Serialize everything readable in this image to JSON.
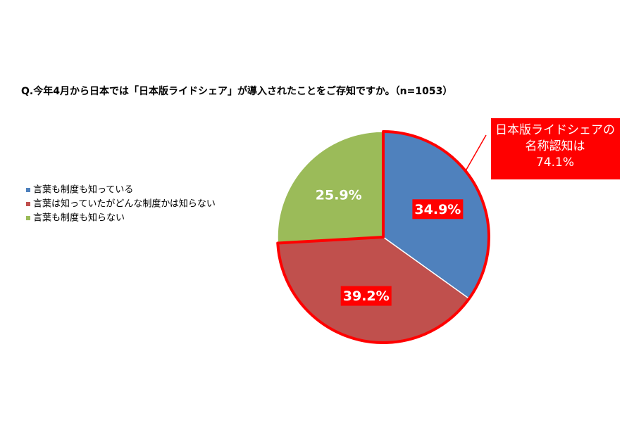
{
  "chart_data": {
    "type": "pie",
    "title": "Q.今年4月から日本では「日本版ライドシェア」が導入されたことをご存知ですか。（n=1053）",
    "categories": [
      "言葉も制度も知っている",
      "言葉は知っていたがどんな制度かは知らない",
      "言葉も制度も知らない"
    ],
    "values": [
      34.9,
      39.2,
      25.9
    ],
    "value_labels": [
      "34.9%",
      "39.2%",
      "25.9%"
    ],
    "colors": [
      "#4f81bd",
      "#c0504d",
      "#9bbb59"
    ],
    "highlight": {
      "slices": [
        0,
        1
      ],
      "color": "#ff0000"
    },
    "annotation": [
      "日本版ライドシェアの",
      "名称認知は",
      "74.1%"
    ],
    "legend": "left"
  }
}
